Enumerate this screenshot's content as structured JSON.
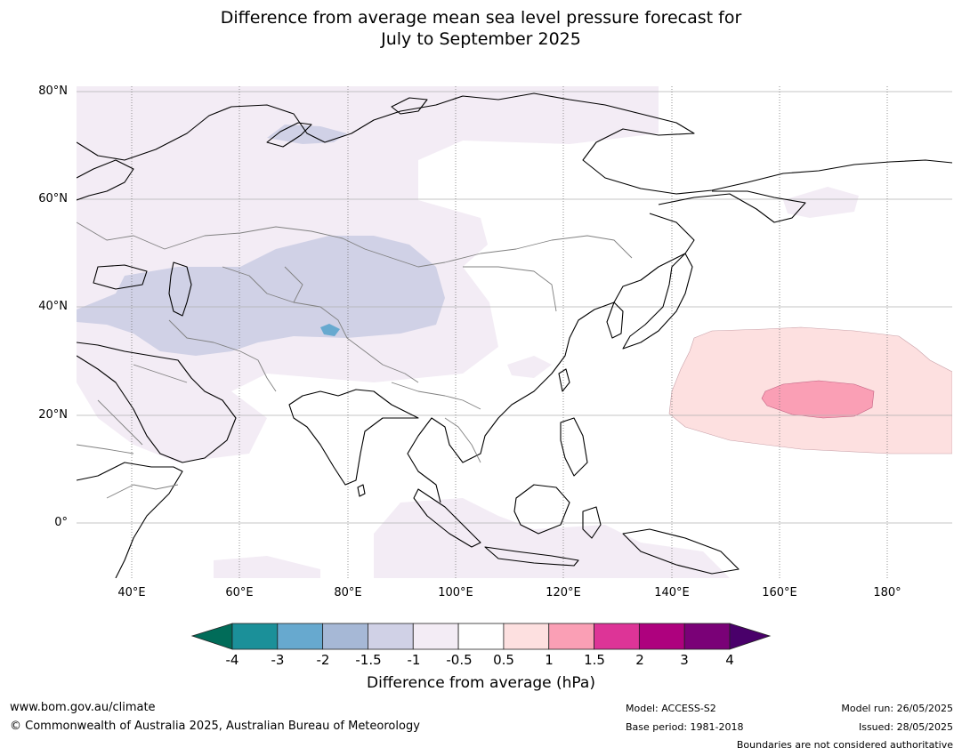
{
  "title_line1": "Difference from average mean sea level pressure forecast for",
  "title_line2": "July to September 2025",
  "lat_ticks": [
    "80°N",
    "60°N",
    "40°N",
    "20°N",
    "0°"
  ],
  "lon_ticks": [
    "40°E",
    "60°E",
    "80°E",
    "100°E",
    "120°E",
    "140°E",
    "160°E",
    "180°"
  ],
  "colorbar": {
    "title": "Difference from average (hPa)",
    "labels": [
      "-4",
      "-3",
      "-2",
      "-1.5",
      "-1",
      "-0.5",
      "0.5",
      "1",
      "1.5",
      "2",
      "3",
      "4"
    ],
    "colors": [
      "#1b9099",
      "#67a9cf",
      "#a6b8d6",
      "#d0d1e6",
      "#f3ecf5",
      "#ffffff",
      "#fde0e0",
      "#fa9fb5",
      "#dd3497",
      "#ae017e",
      "#7a0177"
    ],
    "under_color": "#016c59",
    "over_color": "#49006a"
  },
  "footer": {
    "website": "www.bom.gov.au/climate",
    "copyright": "© Commonwealth of Australia 2025, Australian Bureau of Meteorology",
    "model": "Model: ACCESS-S2",
    "base_period": "Base period: 1981-2018",
    "model_run": "Model run: 26/05/2025",
    "issued": "Issued: 28/05/2025",
    "disclaimer": "Boundaries are not considered authoritative"
  }
}
